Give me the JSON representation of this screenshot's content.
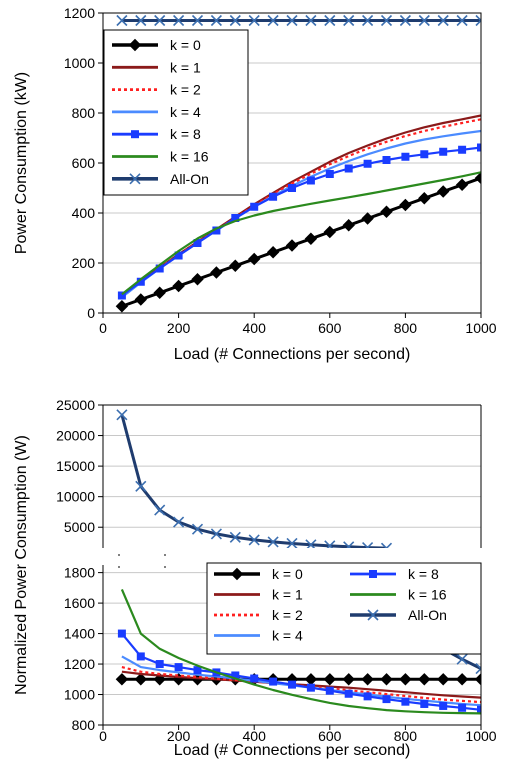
{
  "chart_data": [
    {
      "type": "line",
      "xlabel": "Load (# Connections per second)",
      "ylabel": "Power Consumption (kW)",
      "xlim": [
        0,
        1000
      ],
      "ylim": [
        0,
        1200
      ],
      "xticks": [
        "0",
        "200",
        "400",
        "600",
        "800",
        "1000"
      ],
      "yticks": [
        "0",
        "200",
        "400",
        "600",
        "800",
        "1000",
        "1200"
      ],
      "grid": "horizontal",
      "legend_position": "top-left",
      "x": [
        50,
        100,
        150,
        200,
        250,
        300,
        350,
        400,
        450,
        500,
        550,
        600,
        650,
        700,
        750,
        800,
        850,
        900,
        950,
        1000
      ],
      "series": [
        {
          "name": "k = 0",
          "color": "#000000",
          "style": "solid",
          "marker": "diamond",
          "values": [
            27,
            54,
            81,
            108,
            135,
            162,
            189,
            216,
            243,
            270,
            297,
            324,
            351,
            378,
            405,
            432,
            459,
            486,
            513,
            540
          ]
        },
        {
          "name": "k = 1",
          "color": "#8b1a1a",
          "style": "solid",
          "marker": "none",
          "values": [
            65,
            125,
            182,
            235,
            285,
            335,
            385,
            435,
            480,
            525,
            565,
            605,
            640,
            670,
            698,
            722,
            743,
            760,
            775,
            790
          ]
        },
        {
          "name": "k = 2",
          "color": "#ff2020",
          "style": "dotted",
          "marker": "none",
          "values": [
            65,
            124,
            180,
            233,
            283,
            332,
            381,
            430,
            475,
            518,
            557,
            595,
            628,
            658,
            685,
            708,
            728,
            745,
            760,
            775
          ]
        },
        {
          "name": "k = 4",
          "color": "#4b8bff",
          "style": "solid",
          "marker": "none",
          "values": [
            63,
            122,
            178,
            230,
            280,
            330,
            378,
            425,
            468,
            508,
            545,
            578,
            608,
            635,
            658,
            678,
            694,
            707,
            718,
            728
          ]
        },
        {
          "name": "k = 8",
          "color": "#1a3cff",
          "style": "solid",
          "marker": "square",
          "values": [
            70,
            125,
            178,
            230,
            280,
            330,
            380,
            425,
            465,
            500,
            530,
            556,
            578,
            597,
            612,
            625,
            635,
            645,
            653,
            662
          ]
        },
        {
          "name": "k = 16",
          "color": "#2b8a1e",
          "style": "solid",
          "marker": "none",
          "values": [
            75,
            135,
            192,
            248,
            298,
            338,
            368,
            390,
            408,
            423,
            437,
            450,
            463,
            476,
            490,
            504,
            518,
            532,
            547,
            563
          ]
        },
        {
          "name": "All-On",
          "color": "#1f3c6e",
          "style": "solid",
          "marker": "x",
          "values": [
            1170,
            1170,
            1170,
            1170,
            1170,
            1170,
            1170,
            1170,
            1170,
            1170,
            1170,
            1170,
            1170,
            1170,
            1170,
            1170,
            1170,
            1170,
            1170,
            1170
          ]
        }
      ]
    },
    {
      "type": "line",
      "xlabel": "Load (# Connections per second)",
      "ylabel": "Normalized Power Consumption (W)",
      "xlim": [
        0,
        1000
      ],
      "broken_axis": true,
      "upper_ylim": [
        1600,
        25000
      ],
      "upper_yticks": [
        "5000",
        "10000",
        "15000",
        "20000",
        "25000"
      ],
      "lower_ylim": [
        800,
        1850
      ],
      "lower_yticks": [
        "800",
        "1000",
        "1200",
        "1400",
        "1600",
        "1800"
      ],
      "xticks": [
        "0",
        "200",
        "400",
        "600",
        "800",
        "1000"
      ],
      "grid": "horizontal",
      "legend_position": "top-right",
      "x": [
        50,
        100,
        150,
        200,
        250,
        300,
        350,
        400,
        450,
        500,
        550,
        600,
        650,
        700,
        750,
        800,
        850,
        900,
        950,
        1000
      ],
      "series": [
        {
          "name": "k = 0",
          "color": "#000000",
          "style": "solid",
          "marker": "diamond",
          "values": [
            1100,
            1100,
            1100,
            1100,
            1100,
            1100,
            1100,
            1100,
            1100,
            1100,
            1100,
            1100,
            1100,
            1100,
            1100,
            1100,
            1100,
            1100,
            1100,
            1100
          ]
        },
        {
          "name": "k = 1",
          "color": "#8b1a1a",
          "style": "solid",
          "marker": "none",
          "values": [
            1150,
            1135,
            1125,
            1115,
            1108,
            1100,
            1092,
            1085,
            1075,
            1068,
            1060,
            1052,
            1045,
            1035,
            1025,
            1015,
            1005,
            995,
            987,
            980
          ]
        },
        {
          "name": "k = 2",
          "color": "#ff2020",
          "style": "dotted",
          "marker": "none",
          "values": [
            1180,
            1150,
            1135,
            1125,
            1115,
            1105,
            1095,
            1085,
            1075,
            1063,
            1050,
            1040,
            1028,
            1015,
            1003,
            990,
            978,
            967,
            958,
            950
          ]
        },
        {
          "name": "k = 4",
          "color": "#4b8bff",
          "style": "solid",
          "marker": "none",
          "values": [
            1250,
            1180,
            1160,
            1145,
            1130,
            1118,
            1105,
            1090,
            1075,
            1060,
            1045,
            1030,
            1015,
            1000,
            985,
            972,
            960,
            948,
            938,
            930
          ]
        },
        {
          "name": "k = 8",
          "color": "#1a3cff",
          "style": "solid",
          "marker": "square",
          "values": [
            1400,
            1250,
            1200,
            1180,
            1160,
            1145,
            1125,
            1105,
            1085,
            1065,
            1045,
            1025,
            1005,
            988,
            970,
            953,
            938,
            925,
            913,
            900
          ]
        },
        {
          "name": "k = 16",
          "color": "#2b8a1e",
          "style": "solid",
          "marker": "none",
          "values": [
            1690,
            1400,
            1300,
            1240,
            1190,
            1145,
            1105,
            1065,
            1030,
            998,
            970,
            945,
            925,
            910,
            898,
            890,
            884,
            880,
            878,
            876
          ]
        },
        {
          "name": "All-On",
          "color": "#1f3c6e",
          "style": "solid",
          "marker": "x",
          "values": [
            23400,
            11700,
            7800,
            5850,
            4680,
            3900,
            3343,
            2925,
            2600,
            2340,
            2127,
            1950,
            1800,
            1671,
            1560,
            1463,
            1376,
            1300,
            1232,
            1170
          ]
        }
      ]
    }
  ]
}
